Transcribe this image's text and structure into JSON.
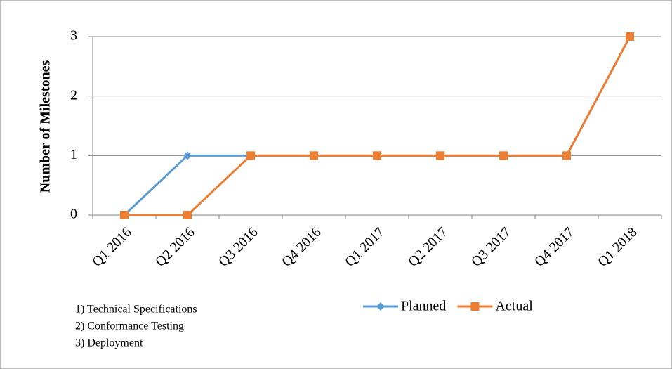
{
  "chart_data": {
    "type": "line",
    "y_label": "Number of Milestones",
    "categories": [
      "Q1 2016",
      "Q2 2016",
      "Q3 2016",
      "Q4 2016",
      "Q1 2017",
      "Q2 2017",
      "Q3 2017",
      "Q4 2017",
      "Q1 2018"
    ],
    "series": [
      {
        "name": "Planned",
        "color": "#5b9bd5",
        "marker": "diamond",
        "values": [
          0,
          1,
          1,
          1,
          1,
          1,
          1,
          1,
          3
        ]
      },
      {
        "name": "Actual",
        "color": "#ed7d31",
        "marker": "square",
        "values": [
          0,
          0,
          1,
          1,
          1,
          1,
          1,
          1,
          3
        ]
      }
    ],
    "ylim": [
      0,
      3
    ],
    "yticks": [
      0,
      1,
      2,
      3
    ],
    "grid": true,
    "legend": "bottom",
    "annotations": [
      "1) Technical Specifications",
      "2) Conformance Testing",
      "3) Deployment"
    ]
  }
}
